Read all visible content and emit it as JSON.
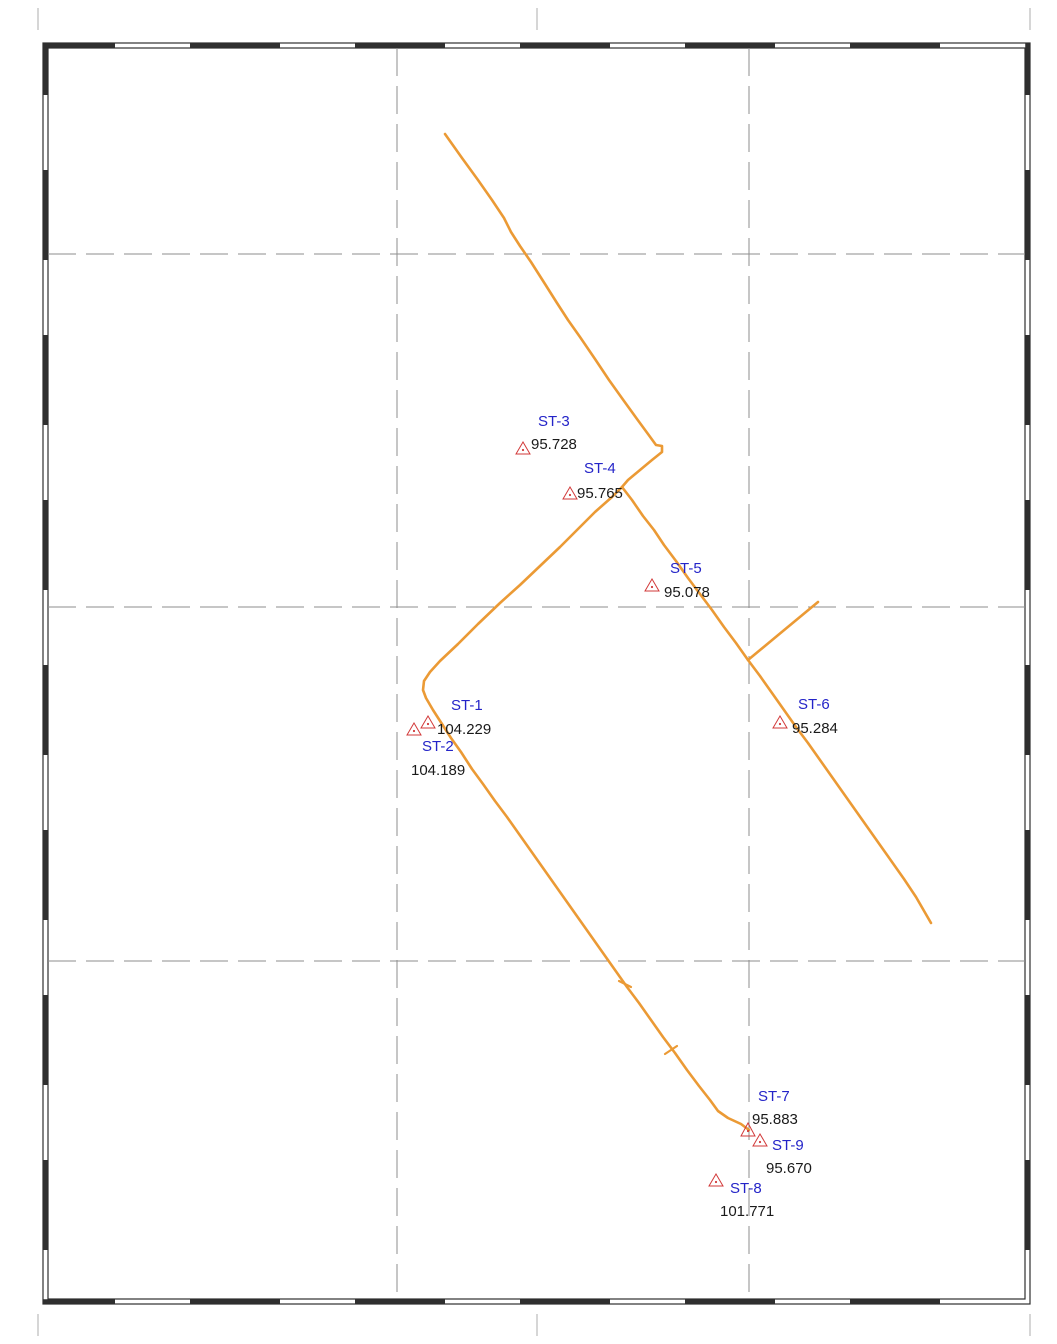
{
  "map": {
    "border_color": "#333333",
    "route_color": "#eb9a35",
    "station_label_color": "#2424c8",
    "elevation_color": "#1a1a1a",
    "marker_color": "#d23a3a",
    "grid_style": "dashed"
  },
  "stations": [
    {
      "name": "ST-1",
      "elevation": "104.229"
    },
    {
      "name": "ST-2",
      "elevation": "104.189"
    },
    {
      "name": "ST-3",
      "elevation": "95.728"
    },
    {
      "name": "ST-4",
      "elevation": "95.765"
    },
    {
      "name": "ST-5",
      "elevation": "95.078"
    },
    {
      "name": "ST-6",
      "elevation": "95.284"
    },
    {
      "name": "ST-7",
      "elevation": "95.883"
    },
    {
      "name": "ST-8",
      "elevation": "101.771"
    },
    {
      "name": "ST-9",
      "elevation": "95.670"
    }
  ]
}
